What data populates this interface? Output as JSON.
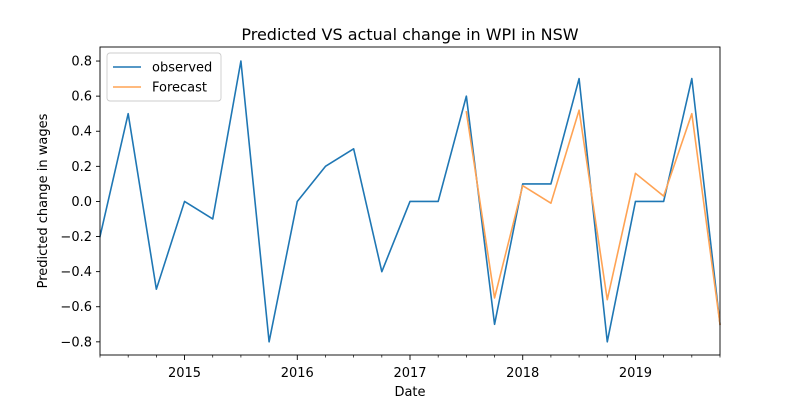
{
  "chart_data": {
    "type": "line",
    "title": "Predicted VS actual change in WPI in NSW",
    "xlabel": "Date",
    "ylabel": "Predicted change in wages",
    "x_tick_labels": [
      "2015",
      "2016",
      "2017",
      "2018",
      "2019"
    ],
    "x_tick_values": [
      "2015-01",
      "2016-01",
      "2017-01",
      "2018-01",
      "2019-01"
    ],
    "xlim": [
      "2014-04",
      "2019-10"
    ],
    "y_tick_labels": [
      "−0.8",
      "−0.6",
      "−0.4",
      "−0.2",
      "0.0",
      "0.2",
      "0.4",
      "0.6",
      "0.8"
    ],
    "y_tick_values": [
      -0.8,
      -0.6,
      -0.4,
      -0.2,
      0.0,
      0.2,
      0.4,
      0.6,
      0.8
    ],
    "ylim": [
      -0.875,
      0.88
    ],
    "grid": false,
    "legend_position": "top-left",
    "series": [
      {
        "name": "observed",
        "color": "#1f77b4",
        "x": [
          "2014-04",
          "2014-07",
          "2014-10",
          "2015-01",
          "2015-04",
          "2015-07",
          "2015-10",
          "2016-01",
          "2016-04",
          "2016-07",
          "2016-10",
          "2017-01",
          "2017-04",
          "2017-07",
          "2017-10",
          "2018-01",
          "2018-04",
          "2018-07",
          "2018-10",
          "2019-01",
          "2019-04",
          "2019-07",
          "2019-10"
        ],
        "values": [
          -0.2,
          0.5,
          -0.5,
          0.0,
          -0.1,
          0.8,
          -0.8,
          0.0,
          0.2,
          0.3,
          -0.4,
          0.0,
          0.0,
          0.6,
          -0.7,
          0.1,
          0.1,
          0.7,
          -0.8,
          0.0,
          0.0,
          0.7,
          -0.7
        ]
      },
      {
        "name": "Forecast",
        "color": "#ffa354",
        "x": [
          "2017-07",
          "2017-10",
          "2018-01",
          "2018-04",
          "2018-07",
          "2018-10",
          "2019-01",
          "2019-04",
          "2019-07",
          "2019-10"
        ],
        "values": [
          0.51,
          -0.55,
          0.09,
          -0.01,
          0.52,
          -0.56,
          0.16,
          0.03,
          0.5,
          -0.7
        ]
      }
    ]
  }
}
